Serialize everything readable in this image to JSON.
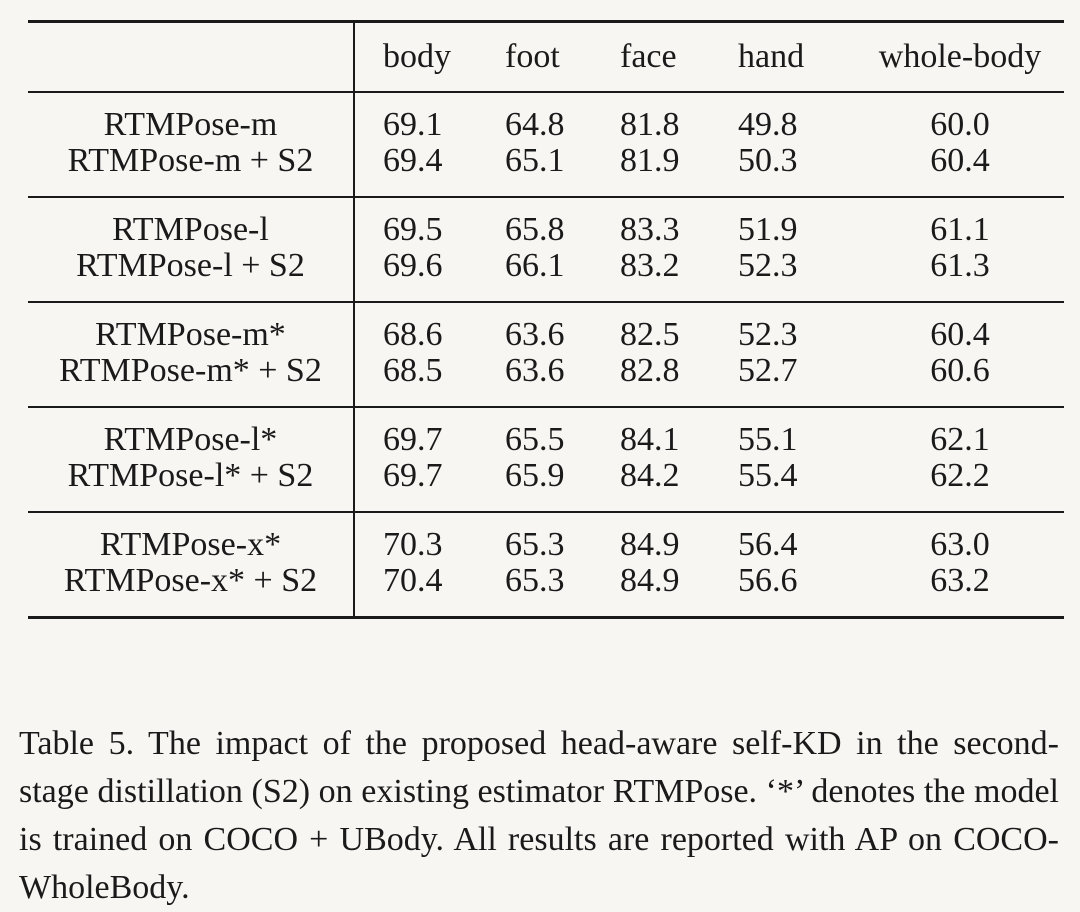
{
  "table": {
    "headers": [
      "",
      "body",
      "foot",
      "face",
      "hand",
      "whole-body"
    ],
    "groups": [
      {
        "rows": [
          {
            "name": "RTMPose-m",
            "values": [
              "69.1",
              "64.8",
              "81.8",
              "49.8",
              "60.0"
            ]
          },
          {
            "name": "RTMPose-m + S2",
            "values": [
              "69.4",
              "65.1",
              "81.9",
              "50.3",
              "60.4"
            ]
          }
        ]
      },
      {
        "rows": [
          {
            "name": "RTMPose-l",
            "values": [
              "69.5",
              "65.8",
              "83.3",
              "51.9",
              "61.1"
            ]
          },
          {
            "name": "RTMPose-l + S2",
            "values": [
              "69.6",
              "66.1",
              "83.2",
              "52.3",
              "61.3"
            ]
          }
        ]
      },
      {
        "rows": [
          {
            "name": "RTMPose-m*",
            "values": [
              "68.6",
              "63.6",
              "82.5",
              "52.3",
              "60.4"
            ]
          },
          {
            "name": "RTMPose-m* + S2",
            "values": [
              "68.5",
              "63.6",
              "82.8",
              "52.7",
              "60.6"
            ]
          }
        ]
      },
      {
        "rows": [
          {
            "name": "RTMPose-l*",
            "values": [
              "69.7",
              "65.5",
              "84.1",
              "55.1",
              "62.1"
            ]
          },
          {
            "name": "RTMPose-l* + S2",
            "values": [
              "69.7",
              "65.9",
              "84.2",
              "55.4",
              "62.2"
            ]
          }
        ]
      },
      {
        "rows": [
          {
            "name": "RTMPose-x*",
            "values": [
              "70.3",
              "65.3",
              "84.9",
              "56.4",
              "63.0"
            ]
          },
          {
            "name": "RTMPose-x* + S2",
            "values": [
              "70.4",
              "65.3",
              "84.9",
              "56.6",
              "63.2"
            ]
          }
        ]
      }
    ]
  },
  "caption": "Table 5. The impact of the proposed head-aware self-KD in the second-stage distillation (S2) on existing estimator RTMPose. ‘*’ denotes the model is trained on COCO + UBody. All results are reported with AP on COCO-WholeBody."
}
